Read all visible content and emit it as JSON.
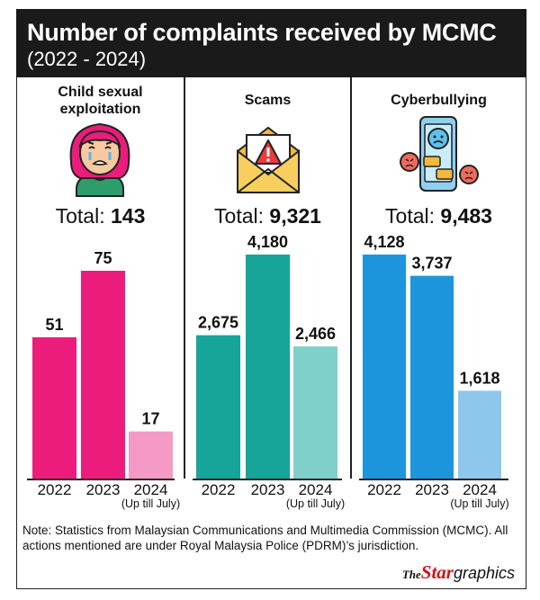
{
  "header": {
    "title": "Number of complaints received by MCMC",
    "subtitle": "(2022 - 2024)"
  },
  "colors": {
    "child": [
      "#ec1c7c",
      "#ec1c7c",
      "#f59ac6"
    ],
    "scams": [
      "#17a59a",
      "#17a59a",
      "#7fd0cb"
    ],
    "cyber": [
      "#1c95dc",
      "#1c95dc",
      "#8fc6ec"
    ]
  },
  "icons": {
    "child": "crying-girl-icon",
    "scams": "warning-envelope-icon",
    "cyber": "sad-phone-icon"
  },
  "chart_data": [
    {
      "type": "bar",
      "title": "Child sexual exploitation",
      "total_label": "Total:",
      "total": "143",
      "categories": [
        "2022",
        "2023",
        "2024"
      ],
      "category_notes": [
        "",
        "",
        "(Up till July)"
      ],
      "values": [
        51,
        75,
        17
      ],
      "value_labels": [
        "51",
        "75",
        "17"
      ]
    },
    {
      "type": "bar",
      "title": "Scams",
      "total_label": "Total:",
      "total": "9,321",
      "categories": [
        "2022",
        "2023",
        "2024"
      ],
      "category_notes": [
        "",
        "",
        "(Up till July)"
      ],
      "values": [
        2675,
        4180,
        2466
      ],
      "value_labels": [
        "2,675",
        "4,180",
        "2,466"
      ]
    },
    {
      "type": "bar",
      "title": "Cyberbullying",
      "total_label": "Total:",
      "total": "9,483",
      "categories": [
        "2022",
        "2023",
        "2024"
      ],
      "category_notes": [
        "",
        "",
        "(Up till July)"
      ],
      "values": [
        4128,
        3737,
        1618
      ],
      "value_labels": [
        "4,128",
        "3,737",
        "1,618"
      ]
    }
  ],
  "note": "Note: Statistics from Malaysian Communications and Multimedia Commission (MCMC). All actions mentioned are under Royal Malaysia Police (PDRM)’s jurisdiction.",
  "logo": {
    "the": "The",
    "star": "Star",
    "graphics": "graphics"
  }
}
